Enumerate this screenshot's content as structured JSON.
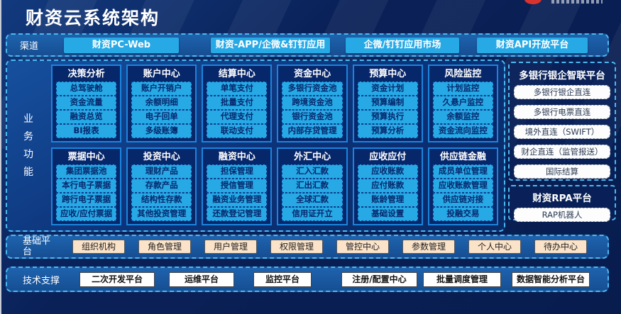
{
  "header": {
    "title": "财资云系统架构"
  },
  "channel": {
    "label": "渠道",
    "buttons": [
      "财资PC-Web",
      "财资-APP/企微&钉钉应用",
      "企微/钉钉应用市场",
      "财资API开放平台"
    ]
  },
  "business": {
    "label": "业务功能",
    "modules": [
      {
        "title": "决策分析",
        "items": [
          "总驾驶舱",
          "资金流量",
          "融资总览",
          "BI报表"
        ]
      },
      {
        "title": "账户中心",
        "items": [
          "账户开销户",
          "余额明细",
          "电子回单",
          "多级账簿"
        ]
      },
      {
        "title": "结算中心",
        "items": [
          "单笔支付",
          "批量支付",
          "代理支付",
          "联动支付"
        ]
      },
      {
        "title": "资金中心",
        "items": [
          "多银行资金池",
          "跨境资金池",
          "银行资金池",
          "内部存贷管理"
        ]
      },
      {
        "title": "预算中心",
        "items": [
          "资金计划",
          "预算编制",
          "预算执行",
          "预算分析"
        ]
      },
      {
        "title": "风险监控",
        "items": [
          "计划监控",
          "久悬户监控",
          "余额监控",
          "资金流向监控"
        ]
      },
      {
        "title": "票据中心",
        "items": [
          "集团票据池",
          "本行电子票据",
          "跨行电子票据",
          "应收/应付票据"
        ]
      },
      {
        "title": "投资中心",
        "items": [
          "理财产品",
          "存款产品",
          "结构性存款",
          "其他投资管理"
        ]
      },
      {
        "title": "融资中心",
        "items": [
          "担保管理",
          "授信管理",
          "融资业务管理",
          "还款登记管理"
        ]
      },
      {
        "title": "外汇中心",
        "items": [
          "汇入汇款",
          "汇出汇款",
          "全球汇款",
          "信用证开立"
        ]
      },
      {
        "title": "应收应付",
        "items": [
          "应收账款",
          "应付账款",
          "账龄管理",
          "基础设置"
        ]
      },
      {
        "title": "供应链金融",
        "items": [
          "成员单位管理",
          "应收账款管理",
          "供应链对接",
          "投融交易"
        ]
      }
    ]
  },
  "right_panel": {
    "bank_platform": {
      "title": "多银行银企智联平台",
      "items": [
        "多银行银企直连",
        "多银行电票直连",
        "境外直连（SWIFT）",
        "财企直连（监管报送）",
        "国际结算"
      ]
    },
    "rpa_platform": {
      "title": "财资RPA平台",
      "items": [
        "RAP机器人"
      ]
    }
  },
  "base_platform": {
    "label": "基础平台",
    "buttons": [
      "组织机构",
      "角色管理",
      "用户管理",
      "权限管理",
      "管控中心",
      "参数管理",
      "个人中心",
      "待办中心"
    ]
  },
  "tech_support": {
    "label": "技术支撑",
    "buttons": [
      "二次开发平台",
      "运维平台",
      "监控平台",
      "注册/配置中心",
      "批量调度管理",
      "数据智能分析平台"
    ]
  },
  "colors": {
    "accent_cyan": "#27a9e6",
    "dashed_border": "#4db9f0",
    "module_navy": "#07276b",
    "band_blue": "#1e63ae",
    "peach_button": "#fbe3c9",
    "white_button": "#ffffff",
    "logo_red": "#d8332e"
  }
}
